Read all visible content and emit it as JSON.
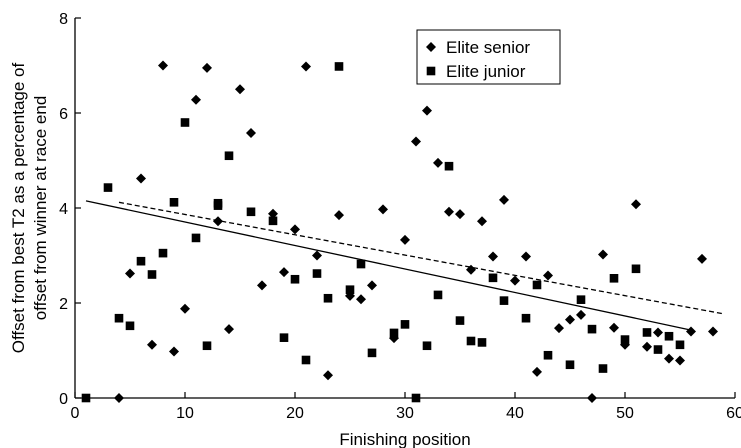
{
  "chart_data": {
    "type": "scatter",
    "xlabel": "Finishing position",
    "ylabel_lines": [
      "Offset from best T2 as a percentage of",
      "offset from winner at race end"
    ],
    "xlim": [
      0,
      60
    ],
    "ylim": [
      0,
      8
    ],
    "xticks": [
      0,
      10,
      20,
      30,
      40,
      50,
      60
    ],
    "yticks": [
      0,
      2,
      4,
      6,
      8
    ],
    "legend_position": "top-right",
    "grid": false,
    "series": [
      {
        "name": "Elite senior",
        "marker": "diamond",
        "line_style": "dashed",
        "trend": {
          "x": [
            4,
            59
          ],
          "y": [
            4.12,
            1.77
          ]
        },
        "points": [
          [
            4,
            0.0
          ],
          [
            5,
            2.62
          ],
          [
            6,
            4.62
          ],
          [
            7,
            1.12
          ],
          [
            8,
            7.0
          ],
          [
            9,
            0.98
          ],
          [
            10,
            1.88
          ],
          [
            11,
            6.28
          ],
          [
            12,
            6.95
          ],
          [
            13,
            3.72
          ],
          [
            14,
            1.45
          ],
          [
            15,
            6.5
          ],
          [
            16,
            5.58
          ],
          [
            17,
            2.37
          ],
          [
            18,
            3.88
          ],
          [
            19,
            2.65
          ],
          [
            20,
            3.55
          ],
          [
            21,
            6.98
          ],
          [
            22,
            3.0
          ],
          [
            23,
            0.48
          ],
          [
            24,
            3.85
          ],
          [
            25,
            2.15
          ],
          [
            26,
            2.08
          ],
          [
            27,
            2.37
          ],
          [
            28,
            3.97
          ],
          [
            29,
            1.26
          ],
          [
            30,
            3.33
          ],
          [
            31,
            5.4
          ],
          [
            32,
            6.05
          ],
          [
            33,
            4.95
          ],
          [
            34,
            3.92
          ],
          [
            35,
            3.87
          ],
          [
            36,
            2.7
          ],
          [
            37,
            3.72
          ],
          [
            38,
            2.98
          ],
          [
            39,
            4.17
          ],
          [
            40,
            2.47
          ],
          [
            41,
            2.98
          ],
          [
            42,
            0.55
          ],
          [
            43,
            2.58
          ],
          [
            44,
            1.47
          ],
          [
            45,
            1.65
          ],
          [
            46,
            1.75
          ],
          [
            47,
            0.0
          ],
          [
            48,
            3.02
          ],
          [
            49,
            1.48
          ],
          [
            50,
            1.12
          ],
          [
            51,
            4.08
          ],
          [
            52,
            1.08
          ],
          [
            53,
            1.38
          ],
          [
            54,
            0.83
          ],
          [
            55,
            0.79
          ],
          [
            56,
            1.4
          ],
          [
            57,
            2.93
          ],
          [
            58,
            1.4
          ]
        ]
      },
      {
        "name": "Elite junior",
        "marker": "square",
        "line_style": "solid",
        "trend": {
          "x": [
            1,
            56
          ],
          "y": [
            4.15,
            1.43
          ]
        },
        "points": [
          [
            1,
            0.0
          ],
          [
            3,
            4.43
          ],
          [
            4,
            1.68
          ],
          [
            5,
            1.52
          ],
          [
            6,
            2.88
          ],
          [
            7,
            2.6
          ],
          [
            8,
            3.05
          ],
          [
            9,
            4.12
          ],
          [
            10,
            5.8
          ],
          [
            11,
            3.37
          ],
          [
            12,
            1.1
          ],
          [
            13,
            4.1
          ],
          [
            13,
            4.05
          ],
          [
            14,
            5.1
          ],
          [
            16,
            3.92
          ],
          [
            18,
            3.73
          ],
          [
            19,
            1.27
          ],
          [
            20,
            2.5
          ],
          [
            21,
            0.8
          ],
          [
            22,
            2.62
          ],
          [
            23,
            2.1
          ],
          [
            24,
            6.98
          ],
          [
            25,
            2.28
          ],
          [
            26,
            2.82
          ],
          [
            27,
            0.95
          ],
          [
            29,
            1.37
          ],
          [
            30,
            1.55
          ],
          [
            31,
            0.0
          ],
          [
            32,
            1.1
          ],
          [
            33,
            2.17
          ],
          [
            34,
            4.88
          ],
          [
            35,
            1.63
          ],
          [
            36,
            1.2
          ],
          [
            37,
            1.17
          ],
          [
            38,
            2.53
          ],
          [
            39,
            2.05
          ],
          [
            41,
            1.68
          ],
          [
            42,
            2.38
          ],
          [
            43,
            0.9
          ],
          [
            45,
            0.7
          ],
          [
            46,
            2.07
          ],
          [
            47,
            1.45
          ],
          [
            48,
            0.62
          ],
          [
            49,
            2.52
          ],
          [
            50,
            1.23
          ],
          [
            51,
            2.72
          ],
          [
            52,
            1.38
          ],
          [
            53,
            1.02
          ],
          [
            54,
            1.3
          ],
          [
            55,
            1.12
          ]
        ]
      }
    ]
  }
}
